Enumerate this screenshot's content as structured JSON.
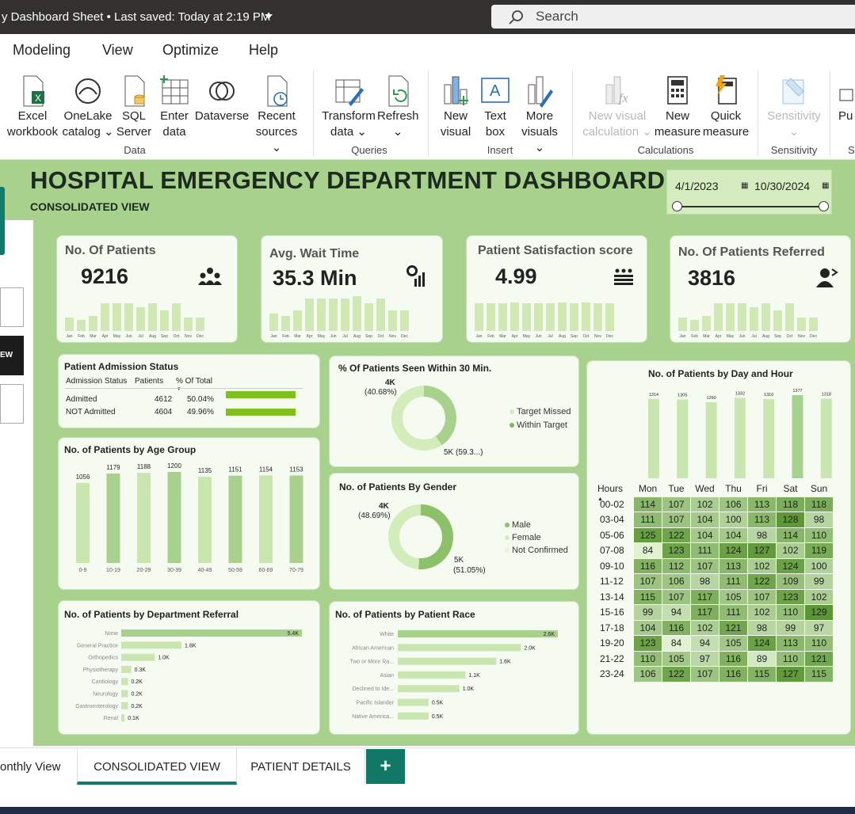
{
  "titlebar": {
    "doc": "y Dashboard Sheet • Last saved: Today at 2:19 PM",
    "search": "Search"
  },
  "menu": [
    "Modeling",
    "View",
    "Optimize",
    "Help"
  ],
  "ribbon": {
    "data": [
      {
        "l1": "Excel",
        "l2": "workbook"
      },
      {
        "l1": "OneLake",
        "l2": "catalog ⌄"
      },
      {
        "l1": "SQL",
        "l2": "Server"
      },
      {
        "l1": "Enter",
        "l2": "data"
      },
      {
        "l1": "Dataverse",
        "l2": ""
      },
      {
        "l1": "Recent",
        "l2": "sources ⌄"
      }
    ],
    "queries": [
      {
        "l1": "Transform",
        "l2": "data ⌄"
      },
      {
        "l1": "Refresh",
        "l2": "⌄"
      }
    ],
    "insert": [
      {
        "l1": "New",
        "l2": "visual"
      },
      {
        "l1": "Text",
        "l2": "box"
      },
      {
        "l1": "More",
        "l2": "visuals ⌄"
      }
    ],
    "calc": [
      {
        "l1": "New visual",
        "l2": "calculation ⌄"
      },
      {
        "l1": "New",
        "l2": "measure"
      },
      {
        "l1": "Quick",
        "l2": "measure"
      }
    ],
    "sens": [
      {
        "l1": "Sensitivity",
        "l2": "⌄"
      }
    ],
    "pub": "Pu",
    "groups": {
      "data": "Data",
      "queries": "Queries",
      "insert": "Insert",
      "calc": "Calculations",
      "sens": "Sensitivity",
      "sh": "Sh"
    }
  },
  "dashboard": {
    "title": "HOSPITAL EMERGENCY DEPARTMENT DASHBOARD",
    "subtitle": "CONSOLIDATED VIEW",
    "date_from": "4/1/2023",
    "date_to": "10/30/2024",
    "left_btn": "EW"
  },
  "kpis": [
    {
      "title": "No. Of Patients",
      "value": "9216",
      "icon": "people-icon",
      "bars": [
        0.35,
        0.3,
        0.4,
        0.72,
        0.72,
        0.72,
        0.62,
        0.72,
        0.55,
        0.72,
        0.35,
        0.35
      ]
    },
    {
      "title": "Avg. Wait Time",
      "value": "35.3 Min",
      "icon": "clock-chart-icon",
      "bars": [
        0.45,
        0.4,
        0.55,
        0.85,
        0.85,
        0.85,
        0.85,
        0.92,
        0.72,
        0.85,
        0.55,
        0.55
      ]
    },
    {
      "title": "Patient Satisfaction score",
      "value": "4.99",
      "icon": "rating-icon",
      "bars": [
        0.72,
        0.72,
        0.72,
        0.75,
        0.72,
        0.72,
        0.72,
        0.75,
        0.72,
        0.75,
        0.72,
        0.72
      ]
    },
    {
      "title": "No. Of Patients Referred",
      "value": "3816",
      "icon": "referral-icon",
      "bars": [
        0.35,
        0.3,
        0.4,
        0.72,
        0.72,
        0.72,
        0.62,
        0.72,
        0.55,
        0.72,
        0.35,
        0.35
      ]
    }
  ],
  "months": [
    "Jan",
    "Feb",
    "Mar",
    "Apr",
    "May",
    "Jun",
    "Jul",
    "Aug",
    "Sep",
    "Oct",
    "Nov",
    "Dec"
  ],
  "admission": {
    "title": "Patient Admission Status",
    "headers": [
      "Admission Status",
      "Patients",
      "% Of Total"
    ],
    "rows": [
      {
        "status": "Admitted",
        "patients": "4612",
        "pct": "50.04%",
        "frac": 0.5004
      },
      {
        "status": "NOT Admitted",
        "patients": "4604",
        "pct": "49.96%",
        "frac": 0.4996
      }
    ]
  },
  "seen30": {
    "title": "% Of Patients Seen Within 30 Min.",
    "labelA": "4K",
    "labelA2": "(40.68%)",
    "labelB": "5K (59.3...)",
    "legend": [
      "Target Missed",
      "Within Target"
    ],
    "frac": 0.4068
  },
  "gender": {
    "title": "No. of Patients By Gender",
    "labelA": "4K",
    "labelA2": "(48.69%)",
    "labelB": "5K",
    "labelB2": "(51.05%)",
    "legend": [
      "Male",
      "Female",
      "Not Confirmed"
    ],
    "frac": 0.5105
  },
  "age": {
    "title": "No. of Patients by Age Group"
  },
  "dept": {
    "title": "No. of Patients by Department Referral"
  },
  "race": {
    "title": "No. of Patients by Patient Race"
  },
  "dayhour": {
    "title": "No. of Patients by Day and Hour",
    "corner": "Hours"
  },
  "tabs": {
    "t1": "onthly View",
    "t2": "CONSOLIDATED VIEW",
    "t3": "PATIENT DETAILS",
    "add": "+"
  },
  "chart_data": [
    {
      "type": "bar",
      "title": "No. of Patients by Age Group",
      "categories": [
        "0-9",
        "10-19",
        "20-29",
        "30-39",
        "40-49",
        "50-59",
        "60-69",
        "70-79"
      ],
      "values": [
        1056,
        1179,
        1188,
        1200,
        1135,
        1151,
        1154,
        1153
      ]
    },
    {
      "type": "bar",
      "orientation": "horizontal",
      "title": "No. of Patients by Department Referral",
      "categories": [
        "None",
        "General Practice",
        "Orthopedics",
        "Physiotherapy",
        "Cardiology",
        "Neurology",
        "Gastroenterology",
        "Renal"
      ],
      "values": [
        5400,
        1800,
        1000,
        300,
        200,
        200,
        200,
        100
      ],
      "labels": [
        "5.4K",
        "1.8K",
        "1.0K",
        "0.3K",
        "0.2K",
        "0.2K",
        "0.2K",
        "0.1K"
      ]
    },
    {
      "type": "bar",
      "orientation": "horizontal",
      "title": "No. of Patients by Patient Race",
      "categories": [
        "White",
        "African American",
        "Two or More Ra...",
        "Asian",
        "Declined to Ide...",
        "Pacific Islander",
        "Native America..."
      ],
      "values": [
        2600,
        2000,
        1600,
        1100,
        1000,
        500,
        500
      ],
      "labels": [
        "2.6K",
        "2.0K",
        "1.6K",
        "1.1K",
        "1.0K",
        "0.5K",
        "0.5K"
      ]
    },
    {
      "type": "bar",
      "title": "No. of Patients by Day and Hour",
      "categories": [
        "Mon",
        "Tue",
        "Wed",
        "Thu",
        "Fri",
        "Sat",
        "Sun"
      ],
      "values": [
        1314,
        1305,
        1260,
        1332,
        1310,
        1377,
        1318
      ]
    },
    {
      "type": "heatmap",
      "title": "No. of Patients by Day and Hour",
      "columns": [
        "Mon",
        "Tue",
        "Wed",
        "Thu",
        "Fri",
        "Sat",
        "Sun"
      ],
      "rows": [
        "00-02",
        "03-04",
        "05-06",
        "07-08",
        "09-10",
        "11-12",
        "13-14",
        "15-16",
        "17-18",
        "19-20",
        "21-22",
        "23-24"
      ],
      "values": [
        [
          114,
          107,
          102,
          106,
          113,
          118,
          118
        ],
        [
          111,
          107,
          104,
          100,
          113,
          128,
          98
        ],
        [
          125,
          122,
          104,
          104,
          98,
          114,
          110
        ],
        [
          84,
          123,
          111,
          124,
          127,
          102,
          119
        ],
        [
          116,
          112,
          107,
          113,
          102,
          124,
          100
        ],
        [
          107,
          106,
          98,
          111,
          122,
          109,
          99
        ],
        [
          115,
          107,
          117,
          105,
          107,
          123,
          102
        ],
        [
          99,
          94,
          117,
          111,
          102,
          110,
          129
        ],
        [
          104,
          116,
          102,
          121,
          98,
          99,
          97
        ],
        [
          123,
          84,
          94,
          105,
          124,
          113,
          110
        ],
        [
          110,
          105,
          97,
          116,
          89,
          110,
          121
        ],
        [
          106,
          122,
          107,
          116,
          115,
          127,
          115
        ]
      ]
    }
  ]
}
